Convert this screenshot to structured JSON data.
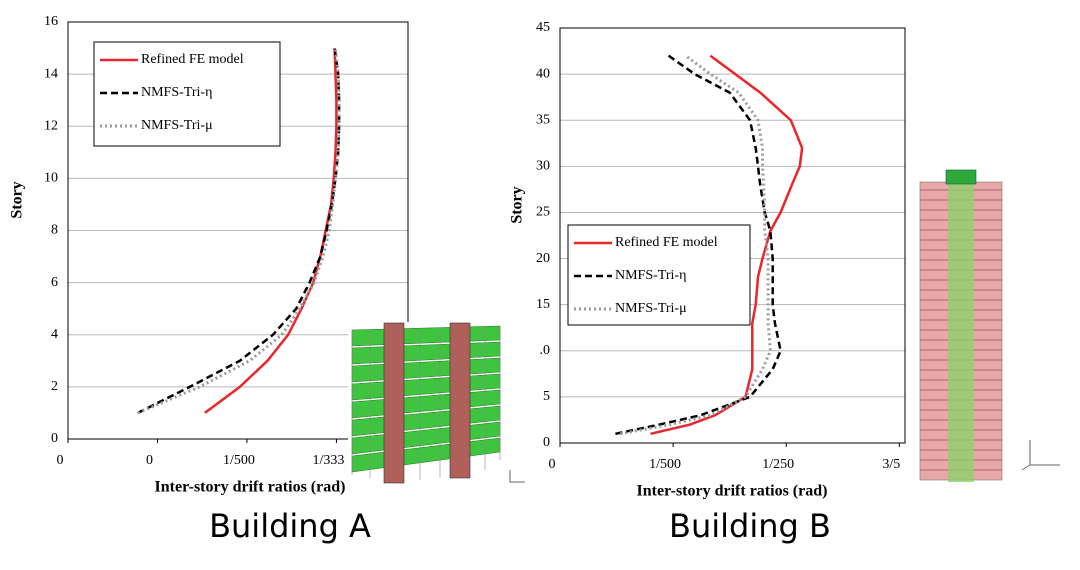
{
  "chart_data": [
    {
      "type": "line",
      "caption": "Building A",
      "x_label": "Inter-story drift ratios (rad)",
      "y_label": "Story",
      "xlim": [
        0,
        3.8
      ],
      "xticks": [
        0,
        {
          "value": 1,
          "label": "0"
        },
        {
          "value": 2,
          "label": "1/500"
        },
        {
          "value": 3,
          "label": "1/333"
        }
      ],
      "ylim": [
        0,
        16
      ],
      "yticks": [
        0,
        2,
        4,
        6,
        8,
        10,
        12,
        14,
        16
      ],
      "grid": true,
      "y": [
        1,
        2,
        3,
        4,
        5,
        6,
        7,
        8,
        9,
        10,
        11,
        12,
        13,
        14,
        15
      ],
      "series": [
        {
          "name": "Refined FE model",
          "color": "#e8262b",
          "style": "solid",
          "values": [
            1.53,
            1.92,
            2.23,
            2.46,
            2.61,
            2.74,
            2.82,
            2.88,
            2.94,
            2.97,
            2.99,
            3.0,
            3.0,
            2.99,
            2.98
          ]
        },
        {
          "name": "NMFS-Tri-η",
          "color": "#000000",
          "style": "dashed",
          "values": [
            0.78,
            1.36,
            1.92,
            2.29,
            2.55,
            2.7,
            2.82,
            2.89,
            2.95,
            2.99,
            3.02,
            3.03,
            3.03,
            3.02,
            2.98
          ]
        },
        {
          "name": "NMFS-Tri-μ",
          "color": "#9a9a9a",
          "style": "dotted",
          "values": [
            0.78,
            1.47,
            2.03,
            2.39,
            2.59,
            2.75,
            2.85,
            2.92,
            2.96,
            2.99,
            3.02,
            3.03,
            3.03,
            3.02,
            2.99
          ]
        }
      ]
    },
    {
      "type": "line",
      "caption": "Building B",
      "x_label": "Inter-story drift ratios (rad)",
      "y_label": "Story",
      "xlim": [
        0,
        3.05
      ],
      "xticks": [
        0,
        {
          "value": 1,
          "label": "1/500"
        },
        {
          "value": 2,
          "label": "1/250"
        },
        {
          "value": 3,
          "label": "3/5"
        }
      ],
      "ylim": [
        0,
        45
      ],
      "yticks": [
        0,
        5,
        {
          "value": 10,
          "label": ".0"
        },
        15,
        20,
        25,
        30,
        35,
        40,
        45
      ],
      "grid": true,
      "y": [
        1,
        2,
        3,
        5,
        8,
        10,
        13,
        15,
        18,
        20,
        23,
        25,
        28,
        30,
        32,
        35,
        38,
        40,
        42
      ],
      "series": [
        {
          "name": "Refined FE model",
          "color": "#e8262b",
          "style": "solid",
          "values": [
            0.8,
            1.15,
            1.37,
            1.64,
            1.7,
            1.7,
            1.7,
            1.73,
            1.75,
            1.79,
            1.86,
            1.95,
            2.05,
            2.12,
            2.14,
            2.04,
            1.77,
            1.55,
            1.33
          ]
        },
        {
          "name": "NMFS-Tri-η",
          "color": "#000000",
          "style": "dashed",
          "values": [
            0.49,
            0.88,
            1.24,
            1.68,
            1.88,
            1.95,
            1.9,
            1.88,
            1.88,
            1.88,
            1.86,
            1.81,
            1.77,
            1.75,
            1.73,
            1.68,
            1.5,
            1.19,
            0.96
          ]
        },
        {
          "name": "NMFS-Tri-μ",
          "color": "#9a9a9a",
          "style": "dotted",
          "values": [
            0.53,
            0.97,
            1.33,
            1.64,
            1.79,
            1.86,
            1.84,
            1.84,
            1.84,
            1.84,
            1.81,
            1.81,
            1.8,
            1.79,
            1.79,
            1.75,
            1.58,
            1.33,
            1.11
          ]
        }
      ]
    }
  ]
}
